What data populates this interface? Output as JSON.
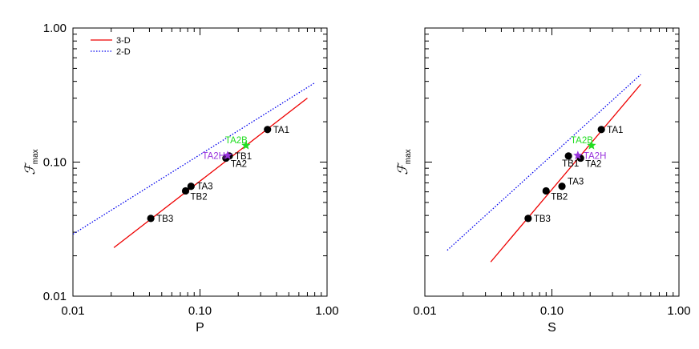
{
  "chart_data": [
    {
      "type": "scatter",
      "xlabel": "P",
      "ylabel_symbol": "ℱ",
      "ylabel_sub": "max",
      "xscale": "log",
      "yscale": "log",
      "xlim": [
        0.01,
        1.0
      ],
      "ylim": [
        0.01,
        1.0
      ],
      "x_ticks": [
        "0.01",
        "0.10",
        "1.00"
      ],
      "y_ticks": [
        "0.01",
        "0.10",
        "1.00"
      ],
      "show_y_tick_labels": true,
      "legend_position": "top-left",
      "legend": [
        {
          "label": "3-D",
          "color": "#ee0000",
          "dash": "solid"
        },
        {
          "label": "2-D",
          "color": "#0000ee",
          "dash": "dotted"
        }
      ],
      "lines": [
        {
          "color": "#ee0000",
          "dash": "solid",
          "x": [
            0.021,
            0.7
          ],
          "y": [
            0.023,
            0.3
          ]
        },
        {
          "color": "#0000ee",
          "dash": "dotted",
          "x": [
            0.01,
            0.8
          ],
          "y": [
            0.029,
            0.39
          ]
        }
      ],
      "points": [
        {
          "label": "TA1",
          "x": 0.34,
          "y": 0.175,
          "color": "#000000",
          "marker": "circle",
          "label_color": "#000000",
          "label_pos": "right"
        },
        {
          "label": "TB1",
          "x": 0.17,
          "y": 0.111,
          "color": "#000000",
          "marker": "circle",
          "label_color": "#000000",
          "label_pos": "right"
        },
        {
          "label": "TA2",
          "x": 0.16,
          "y": 0.107,
          "color": "#000000",
          "marker": "circle",
          "label_color": "#000000",
          "label_pos": "right-below"
        },
        {
          "label": "TA3",
          "x": 0.085,
          "y": 0.066,
          "color": "#000000",
          "marker": "circle",
          "label_color": "#000000",
          "label_pos": "right"
        },
        {
          "label": "TB2",
          "x": 0.077,
          "y": 0.061,
          "color": "#000000",
          "marker": "circle",
          "label_color": "#000000",
          "label_pos": "right-below"
        },
        {
          "label": "TB3",
          "x": 0.041,
          "y": 0.038,
          "color": "#000000",
          "marker": "circle",
          "label_color": "#000000",
          "label_pos": "right"
        },
        {
          "label": "TA2B",
          "x": 0.23,
          "y": 0.133,
          "color": "#22dd22",
          "marker": "star",
          "label_color": "#22dd22",
          "label_pos": "left-above"
        },
        {
          "label": "TA2H",
          "x": 0.165,
          "y": 0.112,
          "color": "#9933dd",
          "marker": "star",
          "label_color": "#9933dd",
          "label_pos": "left"
        }
      ]
    },
    {
      "type": "scatter",
      "xlabel": "S",
      "ylabel_symbol": "ℱ",
      "ylabel_sub": "max",
      "xscale": "log",
      "yscale": "log",
      "xlim": [
        0.01,
        1.0
      ],
      "ylim": [
        0.01,
        1.0
      ],
      "x_ticks": [
        "0.01",
        "0.10",
        "1.00"
      ],
      "y_ticks": [
        "0.01",
        "0.10",
        "1.00"
      ],
      "show_y_tick_labels": false,
      "legend_position": "none",
      "legend": [],
      "lines": [
        {
          "color": "#ee0000",
          "dash": "solid",
          "x": [
            0.033,
            0.5
          ],
          "y": [
            0.018,
            0.38
          ]
        },
        {
          "color": "#0000ee",
          "dash": "dotted",
          "x": [
            0.015,
            0.5
          ],
          "y": [
            0.022,
            0.45
          ]
        }
      ],
      "points": [
        {
          "label": "TA1",
          "x": 0.245,
          "y": 0.175,
          "color": "#000000",
          "marker": "circle",
          "label_color": "#000000",
          "label_pos": "right"
        },
        {
          "label": "TB1",
          "x": 0.135,
          "y": 0.111,
          "color": "#000000",
          "marker": "circle",
          "label_color": "#000000",
          "label_pos": "below"
        },
        {
          "label": "TA2",
          "x": 0.168,
          "y": 0.107,
          "color": "#000000",
          "marker": "circle",
          "label_color": "#000000",
          "label_pos": "right-below"
        },
        {
          "label": "TA3",
          "x": 0.12,
          "y": 0.066,
          "color": "#000000",
          "marker": "circle",
          "label_color": "#000000",
          "label_pos": "right-above"
        },
        {
          "label": "TB2",
          "x": 0.09,
          "y": 0.061,
          "color": "#000000",
          "marker": "circle",
          "label_color": "#000000",
          "label_pos": "right-below"
        },
        {
          "label": "TB3",
          "x": 0.065,
          "y": 0.038,
          "color": "#000000",
          "marker": "circle",
          "label_color": "#000000",
          "label_pos": "right"
        },
        {
          "label": "TA2B",
          "x": 0.205,
          "y": 0.133,
          "color": "#22dd22",
          "marker": "star",
          "label_color": "#22dd22",
          "label_pos": "left-above"
        },
        {
          "label": "TA2H",
          "x": 0.16,
          "y": 0.112,
          "color": "#9933dd",
          "marker": "star",
          "label_color": "#9933dd",
          "label_pos": "right"
        }
      ]
    }
  ]
}
